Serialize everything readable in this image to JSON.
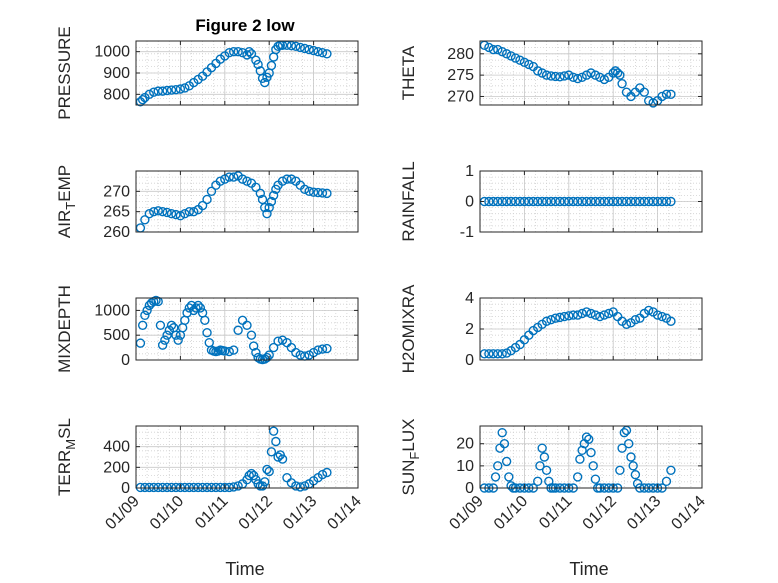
{
  "title": "Figure 2 low",
  "xlabel": "Time",
  "colors": {
    "marker": "#0072BD",
    "axis": "#262626",
    "grid": "#d0d0d0"
  },
  "time_ticks": [
    "01/09",
    "01/10",
    "01/11",
    "01/12",
    "01/13",
    "01/14"
  ],
  "chart_data": [
    {
      "type": "scatter",
      "id": "pressure",
      "ylabel": "PRESSURE",
      "ylim": [
        750,
        1050
      ],
      "yticks": [
        800,
        900,
        1000
      ],
      "x": [
        9.1,
        9.15,
        9.2,
        9.3,
        9.4,
        9.5,
        9.6,
        9.7,
        9.8,
        9.9,
        10.0,
        10.1,
        10.2,
        10.3,
        10.4,
        10.5,
        10.6,
        10.7,
        10.8,
        10.9,
        11.0,
        11.1,
        11.2,
        11.3,
        11.4,
        11.5,
        11.55,
        11.6,
        11.7,
        11.75,
        11.8,
        11.85,
        11.9,
        11.95,
        12.0,
        12.05,
        12.1,
        12.15,
        12.2,
        12.25,
        12.3,
        12.4,
        12.5,
        12.6,
        12.7,
        12.8,
        12.9,
        13.0,
        13.1,
        13.2,
        13.3
      ],
      "y": [
        765,
        775,
        785,
        800,
        810,
        815,
        815,
        818,
        820,
        822,
        825,
        830,
        840,
        855,
        870,
        885,
        905,
        925,
        945,
        965,
        980,
        995,
        1000,
        1000,
        995,
        985,
        1000,
        990,
        960,
        940,
        910,
        875,
        855,
        880,
        900,
        935,
        975,
        1010,
        1025,
        1030,
        1030,
        1030,
        1028,
        1025,
        1020,
        1015,
        1010,
        1005,
        1000,
        995,
        990
      ]
    },
    {
      "type": "scatter",
      "id": "theta",
      "ylabel": "THETA",
      "ylim": [
        268,
        283
      ],
      "yticks": [
        270,
        275,
        280
      ],
      "x": [
        9.1,
        9.2,
        9.3,
        9.4,
        9.5,
        9.6,
        9.7,
        9.8,
        9.9,
        10.0,
        10.1,
        10.2,
        10.3,
        10.4,
        10.5,
        10.6,
        10.7,
        10.8,
        10.9,
        11.0,
        11.1,
        11.2,
        11.3,
        11.4,
        11.5,
        11.6,
        11.7,
        11.8,
        11.9,
        12.0,
        12.05,
        12.1,
        12.15,
        12.2,
        12.3,
        12.4,
        12.5,
        12.6,
        12.7,
        12.8,
        12.9,
        13.0,
        13.1,
        13.2,
        13.3
      ],
      "y": [
        282,
        281.5,
        281,
        281,
        280.5,
        280,
        279.5,
        279,
        278.5,
        278,
        277.5,
        277,
        276,
        275.5,
        275,
        274.8,
        274.7,
        274.6,
        274.8,
        275,
        274.5,
        274.2,
        274.5,
        275,
        275.5,
        275,
        274.5,
        274,
        274.5,
        275.5,
        276,
        275.5,
        275,
        273,
        271,
        270,
        271,
        272,
        271,
        269,
        268.5,
        269,
        270,
        270.5,
        270.5
      ]
    },
    {
      "type": "scatter",
      "id": "air_temp",
      "ylabel": "AIR_TEMP",
      "ylim": [
        260,
        275
      ],
      "yticks": [
        260,
        265,
        270
      ],
      "x": [
        9.1,
        9.2,
        9.3,
        9.4,
        9.5,
        9.6,
        9.7,
        9.8,
        9.9,
        10.0,
        10.1,
        10.2,
        10.3,
        10.4,
        10.5,
        10.6,
        10.7,
        10.8,
        10.9,
        11.0,
        11.1,
        11.2,
        11.3,
        11.4,
        11.5,
        11.6,
        11.7,
        11.8,
        11.85,
        11.9,
        11.95,
        12.0,
        12.05,
        12.1,
        12.15,
        12.2,
        12.3,
        12.4,
        12.5,
        12.6,
        12.7,
        12.8,
        12.9,
        13.0,
        13.1,
        13.2,
        13.3
      ],
      "y": [
        261,
        263,
        264.5,
        265,
        265.2,
        265,
        264.8,
        264.5,
        264.3,
        264,
        264.5,
        265,
        265,
        265.5,
        266.5,
        268,
        270,
        271.5,
        272.5,
        273,
        273.5,
        273.5,
        273.8,
        273,
        272.5,
        272,
        271,
        269.5,
        268,
        266,
        264.5,
        266,
        267.5,
        269,
        270.5,
        271.5,
        272.5,
        273,
        273,
        272.5,
        271.5,
        270.5,
        270,
        269.8,
        269.7,
        269.6,
        269.5
      ]
    },
    {
      "type": "scatter",
      "id": "rainfall",
      "ylabel": "RAINFALL",
      "ylim": [
        -1,
        1
      ],
      "yticks": [
        -1,
        0,
        1
      ],
      "x": [
        9.1,
        9.2,
        9.3,
        9.4,
        9.5,
        9.6,
        9.7,
        9.8,
        9.9,
        10.0,
        10.1,
        10.2,
        10.3,
        10.4,
        10.5,
        10.6,
        10.7,
        10.8,
        10.9,
        11.0,
        11.1,
        11.2,
        11.3,
        11.4,
        11.5,
        11.6,
        11.7,
        11.8,
        11.9,
        12.0,
        12.1,
        12.2,
        12.3,
        12.4,
        12.5,
        12.6,
        12.7,
        12.8,
        12.9,
        13.0,
        13.1,
        13.2,
        13.3
      ],
      "y": [
        0,
        0,
        0,
        0,
        0,
        0,
        0,
        0,
        0,
        0,
        0,
        0,
        0,
        0,
        0,
        0,
        0,
        0,
        0,
        0,
        0,
        0,
        0,
        0,
        0,
        0,
        0,
        0,
        0,
        0,
        0,
        0,
        0,
        0,
        0,
        0,
        0,
        0,
        0,
        0,
        0,
        0,
        0
      ]
    },
    {
      "type": "scatter",
      "id": "mixdepth",
      "ylabel": "MIXDEPTH",
      "ylim": [
        0,
        1250
      ],
      "yticks": [
        0,
        500,
        1000
      ],
      "x": [
        9.1,
        9.15,
        9.2,
        9.25,
        9.3,
        9.35,
        9.4,
        9.45,
        9.5,
        9.55,
        9.6,
        9.65,
        9.7,
        9.75,
        9.8,
        9.85,
        9.9,
        9.95,
        10.0,
        10.05,
        10.1,
        10.15,
        10.2,
        10.25,
        10.3,
        10.35,
        10.4,
        10.45,
        10.5,
        10.55,
        10.6,
        10.65,
        10.7,
        10.75,
        10.8,
        10.85,
        10.9,
        10.95,
        11.0,
        11.1,
        11.2,
        11.3,
        11.4,
        11.5,
        11.6,
        11.65,
        11.7,
        11.75,
        11.8,
        11.85,
        11.9,
        11.95,
        12.0,
        12.1,
        12.2,
        12.3,
        12.4,
        12.5,
        12.6,
        12.7,
        12.8,
        12.9,
        13.0,
        13.1,
        13.2,
        13.3
      ],
      "y": [
        340,
        700,
        900,
        1000,
        1100,
        1150,
        1180,
        1200,
        1180,
        700,
        300,
        400,
        500,
        600,
        700,
        650,
        500,
        400,
        500,
        650,
        800,
        950,
        1050,
        1100,
        1000,
        1050,
        1100,
        1050,
        950,
        800,
        550,
        350,
        200,
        180,
        170,
        180,
        200,
        190,
        180,
        170,
        200,
        600,
        800,
        700,
        500,
        280,
        150,
        50,
        20,
        10,
        20,
        50,
        100,
        250,
        380,
        400,
        350,
        250,
        150,
        100,
        80,
        100,
        150,
        200,
        220,
        230
      ]
    },
    {
      "type": "scatter",
      "id": "h2omixra",
      "ylabel": "H2OMIXRA",
      "ylim": [
        0,
        4
      ],
      "yticks": [
        0,
        2,
        4
      ],
      "x": [
        9.1,
        9.2,
        9.3,
        9.4,
        9.5,
        9.6,
        9.7,
        9.8,
        9.9,
        10.0,
        10.1,
        10.2,
        10.3,
        10.4,
        10.5,
        10.6,
        10.7,
        10.8,
        10.9,
        11.0,
        11.1,
        11.2,
        11.3,
        11.4,
        11.5,
        11.6,
        11.7,
        11.8,
        11.9,
        12.0,
        12.1,
        12.2,
        12.3,
        12.4,
        12.5,
        12.6,
        12.7,
        12.8,
        12.9,
        13.0,
        13.1,
        13.2,
        13.3
      ],
      "y": [
        0.4,
        0.4,
        0.4,
        0.4,
        0.4,
        0.45,
        0.6,
        0.8,
        1.0,
        1.3,
        1.6,
        1.9,
        2.1,
        2.3,
        2.5,
        2.6,
        2.7,
        2.75,
        2.8,
        2.85,
        2.9,
        2.9,
        3.0,
        3.1,
        3.0,
        2.9,
        2.8,
        2.9,
        3.0,
        3.1,
        2.8,
        2.5,
        2.3,
        2.4,
        2.6,
        2.7,
        3.0,
        3.2,
        3.1,
        2.9,
        2.8,
        2.7,
        2.5
      ]
    },
    {
      "type": "scatter",
      "id": "terr_msl",
      "ylabel": "TERR_MSL",
      "ylim": [
        0,
        600
      ],
      "yticks": [
        0,
        200,
        400
      ],
      "x": [
        9.1,
        9.2,
        9.3,
        9.4,
        9.5,
        9.6,
        9.7,
        9.8,
        9.9,
        10.0,
        10.1,
        10.2,
        10.3,
        10.4,
        10.5,
        10.6,
        10.7,
        10.8,
        10.9,
        11.0,
        11.1,
        11.2,
        11.3,
        11.4,
        11.5,
        11.55,
        11.6,
        11.65,
        11.7,
        11.75,
        11.8,
        11.85,
        11.9,
        11.95,
        12.0,
        12.05,
        12.1,
        12.15,
        12.2,
        12.25,
        12.3,
        12.4,
        12.5,
        12.6,
        12.7,
        12.8,
        12.9,
        13.0,
        13.1,
        13.2,
        13.3
      ],
      "y": [
        5,
        5,
        5,
        5,
        5,
        5,
        5,
        5,
        5,
        5,
        5,
        5,
        5,
        5,
        5,
        5,
        5,
        5,
        5,
        5,
        5,
        10,
        20,
        40,
        80,
        120,
        140,
        120,
        80,
        40,
        20,
        20,
        60,
        180,
        160,
        350,
        550,
        450,
        300,
        320,
        280,
        100,
        50,
        20,
        10,
        20,
        40,
        70,
        100,
        130,
        150
      ]
    },
    {
      "type": "scatter",
      "id": "sun_flux",
      "ylabel": "SUN_FLUX",
      "ylim": [
        0,
        28
      ],
      "yticks": [
        0,
        10,
        20
      ],
      "x": [
        9.1,
        9.2,
        9.3,
        9.35,
        9.4,
        9.45,
        9.5,
        9.55,
        9.6,
        9.65,
        9.7,
        9.75,
        9.8,
        9.9,
        10.0,
        10.1,
        10.2,
        10.3,
        10.35,
        10.4,
        10.45,
        10.5,
        10.55,
        10.6,
        10.65,
        10.7,
        10.8,
        10.9,
        11.0,
        11.1,
        11.2,
        11.25,
        11.3,
        11.35,
        11.4,
        11.45,
        11.5,
        11.55,
        11.6,
        11.65,
        11.7,
        11.8,
        11.9,
        12.0,
        12.1,
        12.15,
        12.2,
        12.25,
        12.3,
        12.35,
        12.4,
        12.45,
        12.5,
        12.55,
        12.6,
        12.7,
        12.8,
        12.9,
        13.0,
        13.1,
        13.2,
        13.3
      ],
      "y": [
        0,
        0,
        0,
        5,
        10,
        18,
        25,
        20,
        12,
        5,
        1,
        0,
        0,
        0,
        0,
        0,
        0,
        3,
        10,
        18,
        14,
        8,
        3,
        0,
        0,
        0,
        0,
        0,
        0,
        0,
        5,
        13,
        17,
        20,
        23,
        22,
        16,
        10,
        4,
        0,
        0,
        0,
        0,
        0,
        0,
        8,
        18,
        25,
        26,
        20,
        14,
        10,
        6,
        2,
        0,
        0,
        0,
        0,
        0,
        0,
        3,
        8
      ]
    }
  ]
}
